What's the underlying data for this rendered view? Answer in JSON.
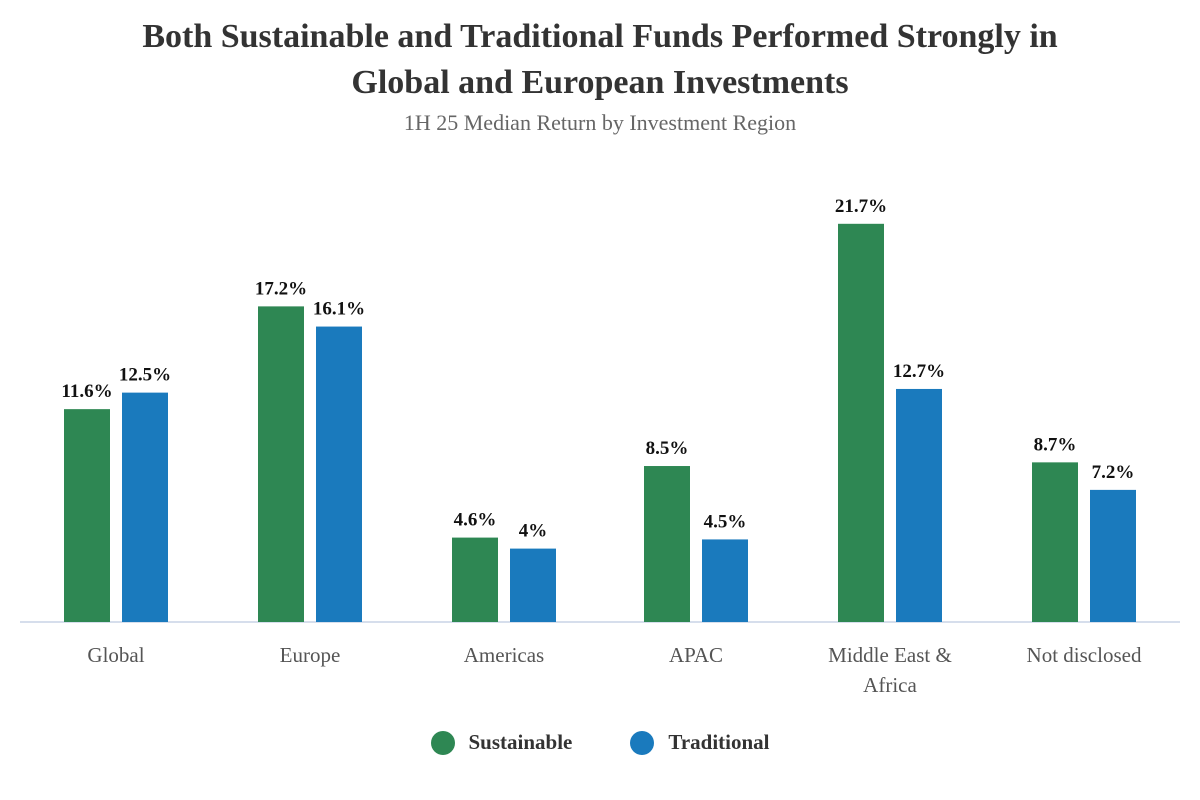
{
  "chart_data": {
    "type": "bar",
    "title_line1": "Both Sustainable and Traditional Funds Performed Strongly in",
    "title_line2": "Global and European Investments",
    "subtitle": "1H 25 Median Return by Investment Region",
    "categories": [
      "Global",
      "Europe",
      "Americas",
      "APAC",
      "Middle East & Africa",
      "Not disclosed"
    ],
    "series": [
      {
        "name": "Sustainable",
        "color": "#2e8753",
        "values": [
          11.6,
          17.2,
          4.6,
          8.5,
          21.7,
          8.7
        ],
        "labels": [
          "11.6%",
          "17.2%",
          "4.6%",
          "8.5%",
          "21.7%",
          "8.7%"
        ]
      },
      {
        "name": "Traditional",
        "color": "#1a7abd",
        "values": [
          12.5,
          16.1,
          4.0,
          4.5,
          12.7,
          7.2
        ],
        "labels": [
          "12.5%",
          "16.1%",
          "4%",
          "4.5%",
          "12.7%",
          "7.2%"
        ]
      }
    ],
    "ylim": [
      0,
      22
    ],
    "xlabel": "",
    "ylabel": "",
    "legend_position": "bottom"
  }
}
